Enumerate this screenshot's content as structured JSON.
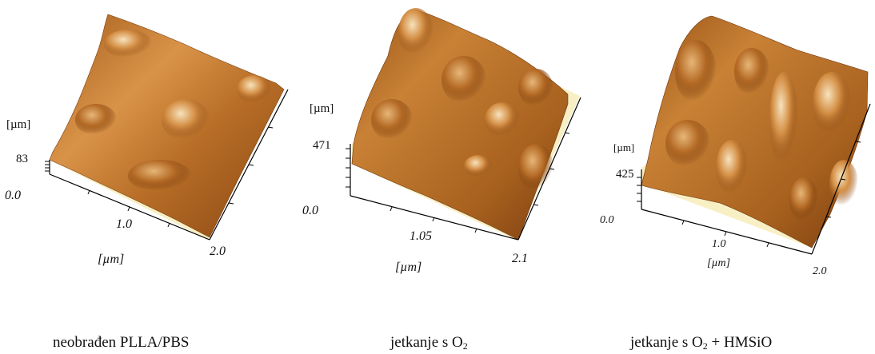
{
  "panels": [
    {
      "unit_label": "[µm]",
      "z_value": "83",
      "origin": "0.0",
      "x_mid": "1.0",
      "x_end": "2.0",
      "x_unit": "[µm]",
      "caption": "neobrađen  PLLA/PBS"
    },
    {
      "unit_label": "[µm]",
      "z_value": "471",
      "origin": "0.0",
      "x_mid": "1.05",
      "x_end": "2.1",
      "x_unit": "[µm]",
      "caption_main": "jetkanje s O",
      "caption_sub": "2"
    },
    {
      "unit_label": "[µm]",
      "z_value": "425",
      "origin": "0.0",
      "x_mid": "1.0",
      "x_end": "2.0",
      "x_unit": "[µm]",
      "caption_main": "jetkanje s O",
      "caption_sub": "2",
      "caption_tail": " + HMSiO"
    }
  ],
  "colors": {
    "surface_dark": "#7a3f10",
    "surface_mid": "#c67a2c",
    "surface_light": "#f3d6a6",
    "base": "#f8efc4"
  }
}
